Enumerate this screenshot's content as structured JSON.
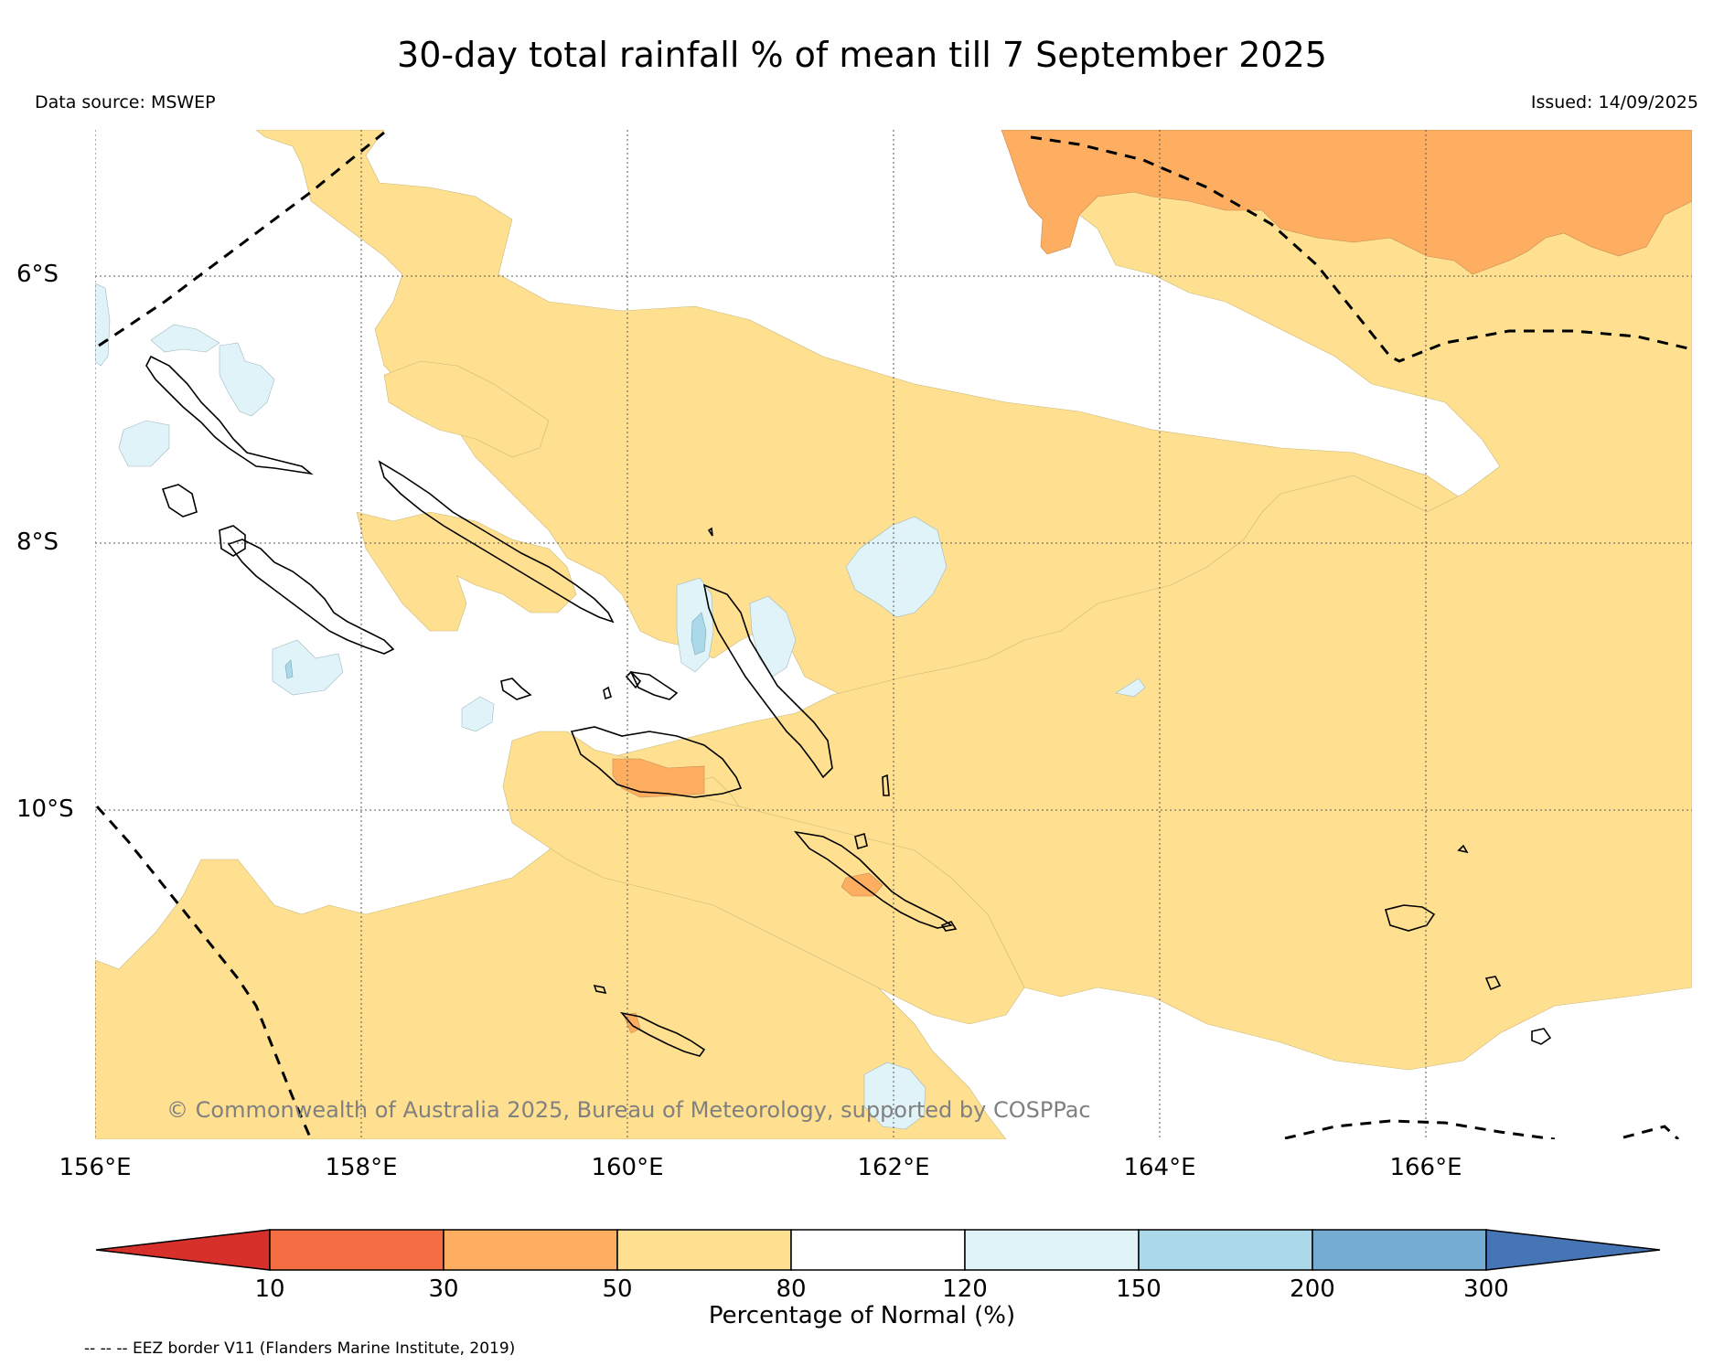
{
  "title": "30-day total rainfall % of mean till 7 September 2025",
  "data_source": "Data source: MSWEP",
  "issued": "Issued: 14/09/2025",
  "copyright": "© Commonwealth of Australia 2025, Bureau of Meteorology, supported by COSPPac",
  "lat_labels": [
    "6°S",
    "8°S",
    "10°S"
  ],
  "lon_labels": [
    "156°E",
    "158°E",
    "160°E",
    "162°E",
    "164°E",
    "166°E"
  ],
  "colorbar": {
    "title": "Percentage of Normal (%)",
    "ticks": [
      "10",
      "30",
      "50",
      "80",
      "120",
      "150",
      "200",
      "300"
    ],
    "colors": [
      "#d7302a",
      "#f46d43",
      "#fdae61",
      "#fee090",
      "#ffffff",
      "#e0f3f8",
      "#abd9e9",
      "#74add1",
      "#4575b4"
    ]
  },
  "footnote": "-- -- -- EEZ border V11 (Flanders Marine Institute, 2019)"
}
